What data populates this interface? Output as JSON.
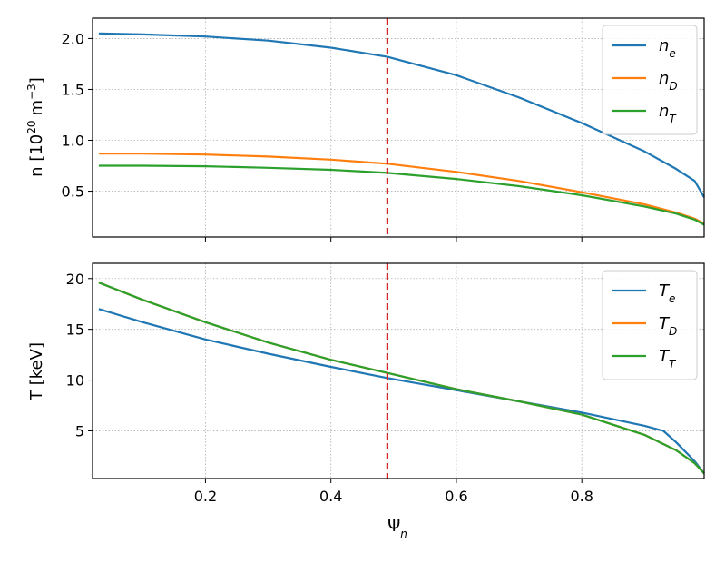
{
  "chart_data": [
    {
      "type": "line",
      "ylabel_main": "n [10",
      "ylabel_exp": "20",
      "ylabel_unit": "m",
      "ylabel_unit_exp": "−3",
      "ylabel_close": "]",
      "xlim": [
        0.02,
        0.995
      ],
      "ylim": [
        0.05,
        2.2
      ],
      "yticks": [
        0.5,
        1.0,
        1.5,
        2.0
      ],
      "ytick_labels": [
        "0.5",
        "1.0",
        "1.5",
        "2.0"
      ],
      "xticks": [
        0.2,
        0.4,
        0.6,
        0.8
      ],
      "grid": true,
      "legend_position": "top-right",
      "vline": {
        "x": 0.49,
        "color": "#d62728",
        "style": "dashed"
      },
      "series": [
        {
          "name": "n",
          "sub": "e",
          "color": "#1f77b4",
          "x": [
            0.03,
            0.1,
            0.2,
            0.3,
            0.4,
            0.49,
            0.6,
            0.7,
            0.8,
            0.9,
            0.95,
            0.98,
            0.995
          ],
          "y": [
            2.05,
            2.04,
            2.02,
            1.98,
            1.91,
            1.82,
            1.64,
            1.42,
            1.17,
            0.89,
            0.72,
            0.6,
            0.44
          ]
        },
        {
          "name": "n",
          "sub": "D",
          "color": "#ff7f0e",
          "x": [
            0.03,
            0.1,
            0.2,
            0.3,
            0.4,
            0.49,
            0.6,
            0.7,
            0.8,
            0.9,
            0.95,
            0.98,
            0.995
          ],
          "y": [
            0.87,
            0.87,
            0.86,
            0.84,
            0.81,
            0.77,
            0.69,
            0.6,
            0.49,
            0.37,
            0.29,
            0.23,
            0.18
          ]
        },
        {
          "name": "n",
          "sub": "T",
          "color": "#2ca02c",
          "x": [
            0.03,
            0.1,
            0.2,
            0.3,
            0.4,
            0.49,
            0.6,
            0.7,
            0.8,
            0.9,
            0.95,
            0.98,
            0.995
          ],
          "y": [
            0.75,
            0.75,
            0.745,
            0.73,
            0.71,
            0.68,
            0.62,
            0.55,
            0.46,
            0.35,
            0.28,
            0.22,
            0.17
          ]
        }
      ]
    },
    {
      "type": "line",
      "ylabel": "T [keV]",
      "xlabel_main": "Ψ",
      "xlabel_sub": "n",
      "xlim": [
        0.02,
        0.995
      ],
      "ylim": [
        0.3,
        21.5
      ],
      "yticks": [
        5,
        10,
        15,
        20
      ],
      "ytick_labels": [
        "5",
        "10",
        "15",
        "20"
      ],
      "xticks": [
        0.2,
        0.4,
        0.6,
        0.8
      ],
      "xtick_labels": [
        "0.2",
        "0.4",
        "0.6",
        "0.8"
      ],
      "grid": true,
      "legend_position": "top-right",
      "vline": {
        "x": 0.49,
        "color": "#d62728",
        "style": "dashed"
      },
      "series": [
        {
          "name": "T",
          "sub": "e",
          "color": "#1f77b4",
          "x": [
            0.03,
            0.1,
            0.2,
            0.3,
            0.4,
            0.49,
            0.6,
            0.7,
            0.8,
            0.9,
            0.93,
            0.95,
            0.98,
            0.995
          ],
          "y": [
            17.0,
            15.7,
            14.0,
            12.6,
            11.3,
            10.2,
            9.0,
            7.9,
            6.8,
            5.5,
            5.0,
            3.9,
            2.0,
            0.8
          ]
        },
        {
          "name": "T",
          "sub": "D",
          "color": "#ff7f0e",
          "x": [
            0.03,
            0.1,
            0.2,
            0.3,
            0.4,
            0.49,
            0.6,
            0.7,
            0.8,
            0.9,
            0.95,
            0.98,
            0.995
          ],
          "y": [
            19.6,
            17.9,
            15.7,
            13.7,
            12.0,
            10.7,
            9.1,
            7.9,
            6.6,
            4.6,
            3.1,
            1.8,
            0.8
          ]
        },
        {
          "name": "T",
          "sub": "T",
          "color": "#2ca02c",
          "x": [
            0.03,
            0.1,
            0.2,
            0.3,
            0.4,
            0.49,
            0.6,
            0.7,
            0.8,
            0.9,
            0.95,
            0.98,
            0.995
          ],
          "y": [
            19.6,
            17.9,
            15.7,
            13.7,
            12.0,
            10.7,
            9.1,
            7.9,
            6.6,
            4.6,
            3.1,
            1.8,
            0.8
          ]
        }
      ]
    }
  ]
}
